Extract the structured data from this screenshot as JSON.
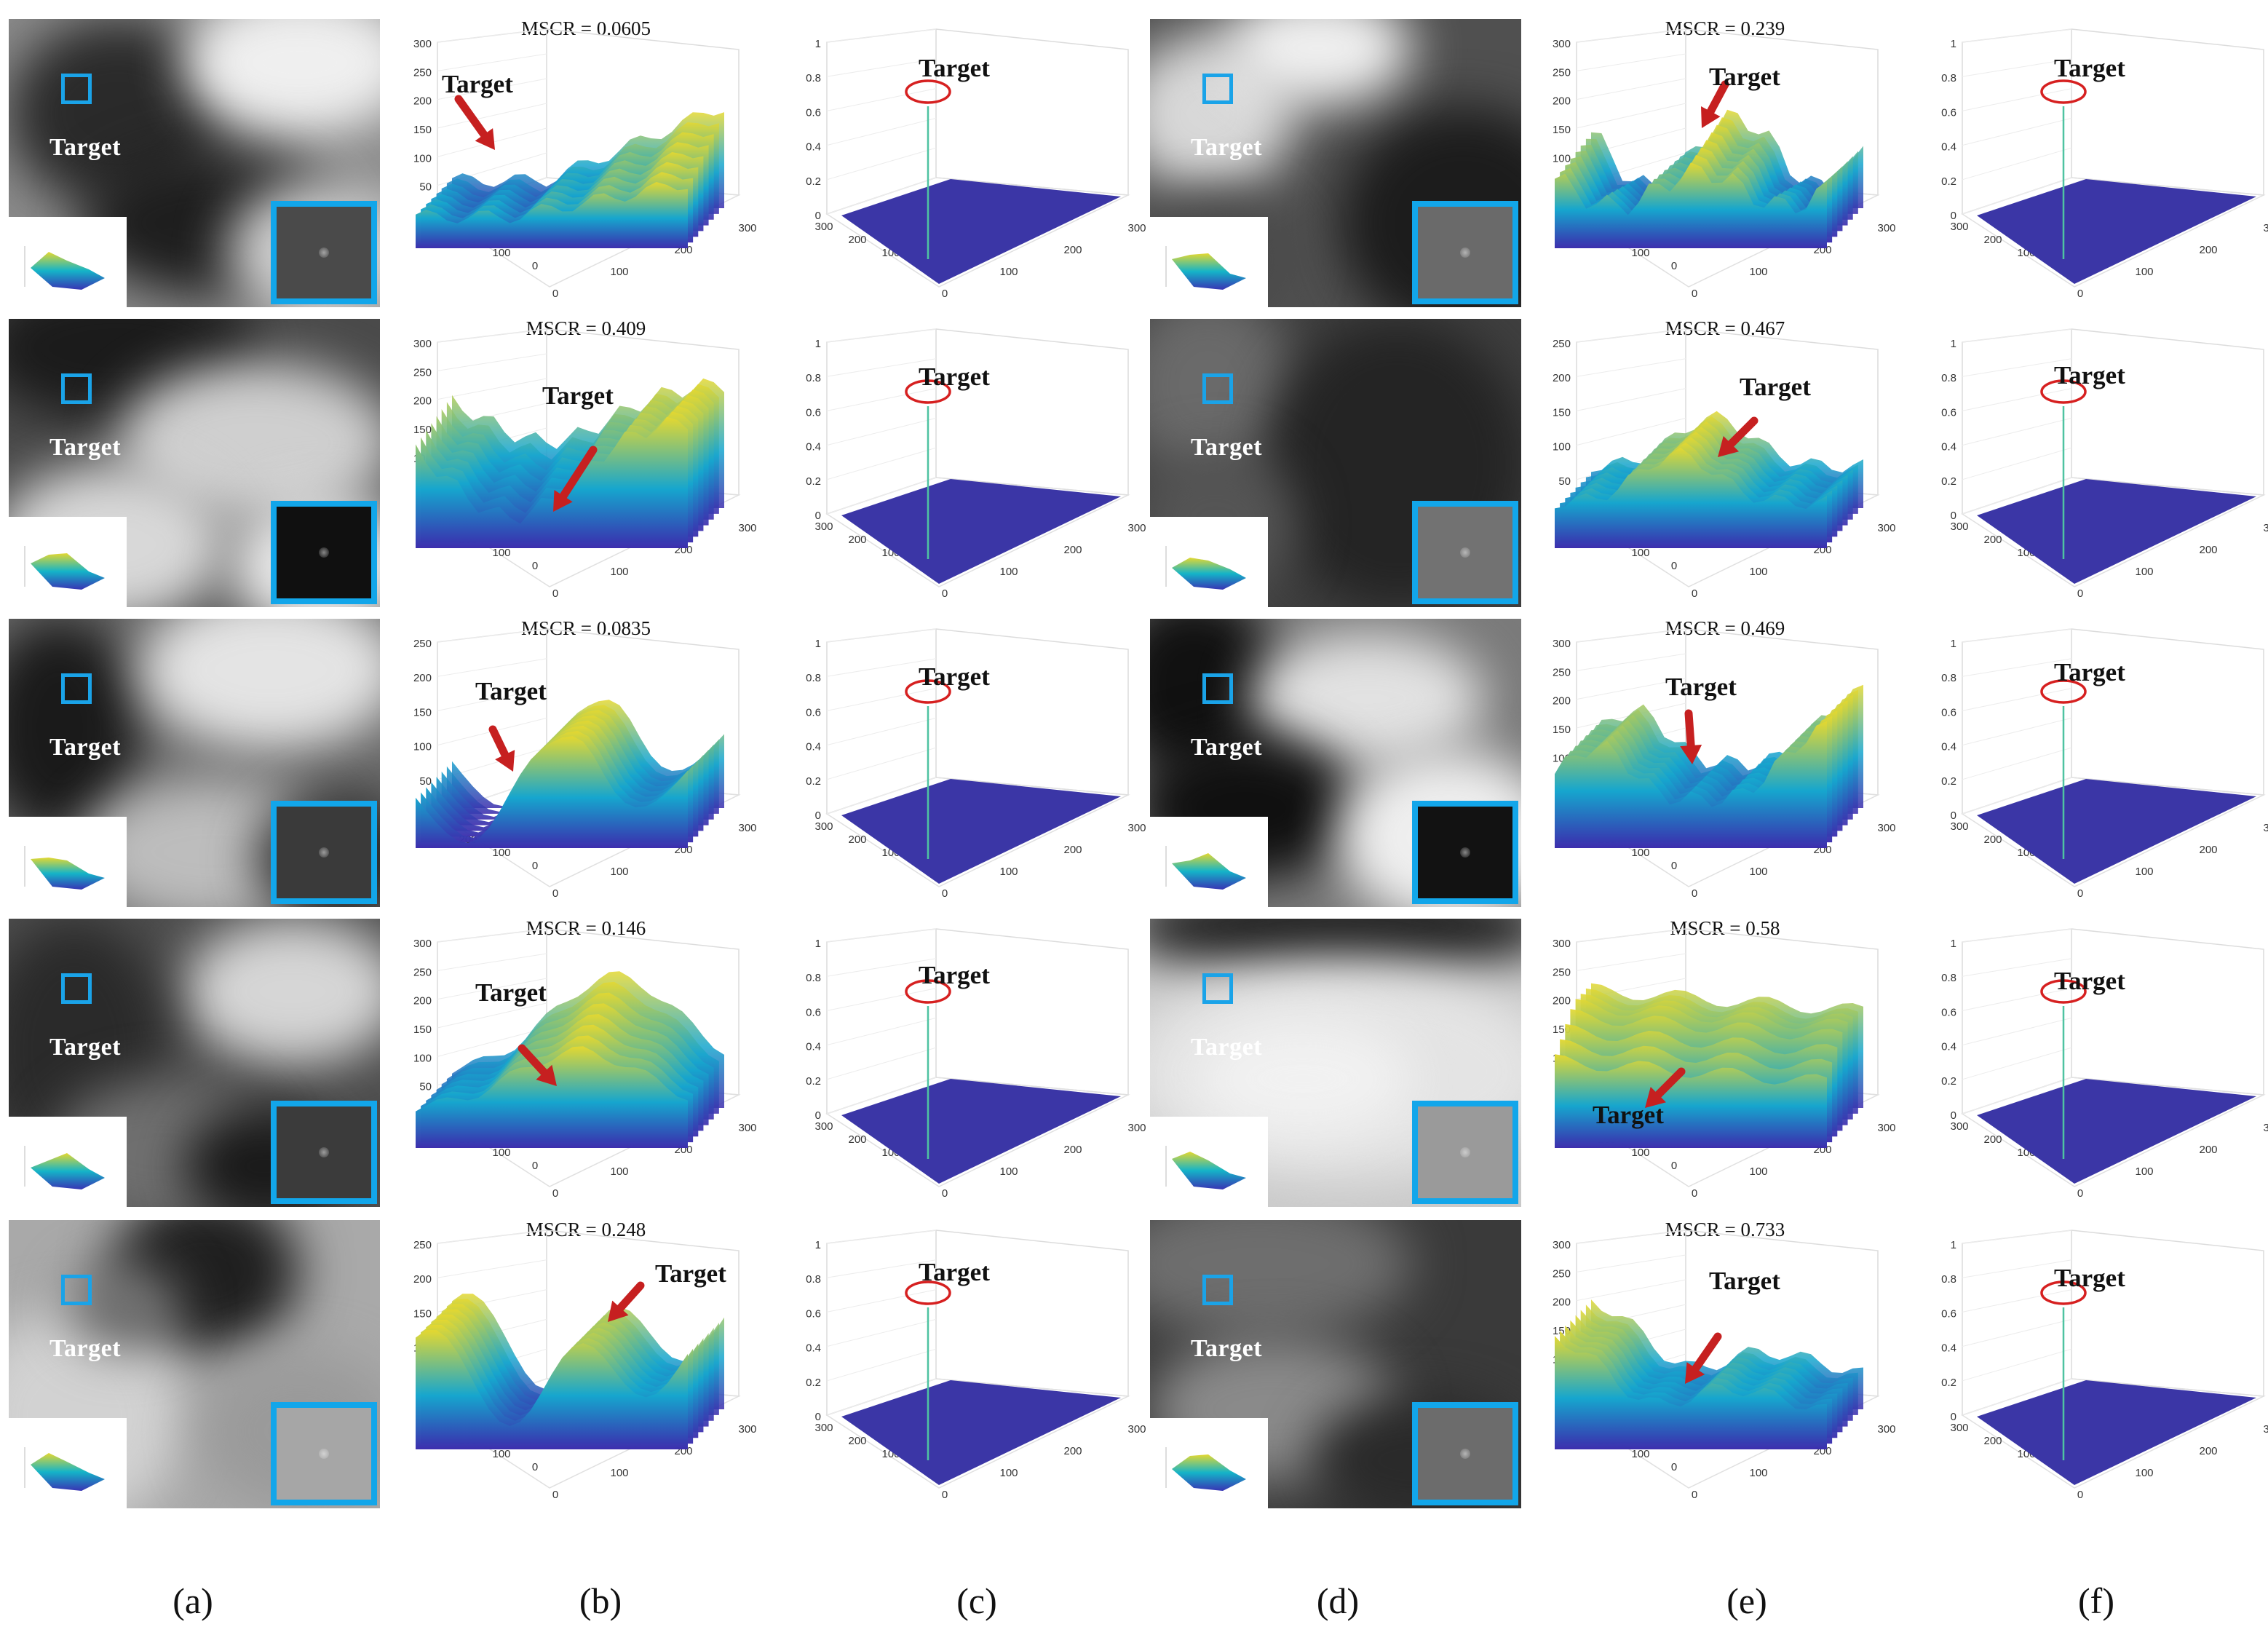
{
  "target_word": "Target",
  "column_labels": [
    "(a)",
    "(b)",
    "(c)",
    "(d)",
    "(e)",
    "(f)"
  ],
  "colors": {
    "box": "#1aa3e8",
    "arrow": "#c62020",
    "ellipse": "#d62020",
    "floor": "#3b36a6"
  },
  "surface_axes": {
    "z_ticks_300": [
      "0",
      "50",
      "100",
      "150",
      "200",
      "250",
      "300"
    ],
    "z_ticks_250": [
      "0",
      "50",
      "100",
      "150",
      "200",
      "250"
    ],
    "xy_ticks_side": [
      "300",
      "200",
      "100",
      "0"
    ],
    "xy_ticks_front": [
      "0",
      "100",
      "200",
      "300"
    ]
  },
  "response_axes": {
    "z_ticks": [
      "0",
      "0.2",
      "0.4",
      "0.6",
      "0.8",
      "1"
    ],
    "xy_ticks_side": [
      "300",
      "200",
      "100",
      "0"
    ],
    "xy_ticks_front": [
      "0",
      "100",
      "200",
      "300"
    ]
  },
  "mscr_values": [
    "MSCR = 0.0605",
    "MSCR = 0.409",
    "MSCR = 0.0835",
    "MSCR = 0.146",
    "MSCR = 0.248",
    "MSCR = 0.239",
    "MSCR = 0.467",
    "MSCR = 0.469",
    "MSCR = 0.58",
    "MSCR = 0.733"
  ],
  "rows": [
    {
      "left_mscr": "MSCR = 0.0605",
      "right_mscr": "MSCR = 0.239"
    },
    {
      "left_mscr": "MSCR = 0.409",
      "right_mscr": "MSCR = 0.467"
    },
    {
      "left_mscr": "MSCR = 0.0835",
      "right_mscr": "MSCR = 0.469"
    },
    {
      "left_mscr": "MSCR = 0.146",
      "right_mscr": "MSCR = 0.58"
    },
    {
      "left_mscr": "MSCR = 0.248",
      "right_mscr": "MSCR = 0.733"
    }
  ]
}
